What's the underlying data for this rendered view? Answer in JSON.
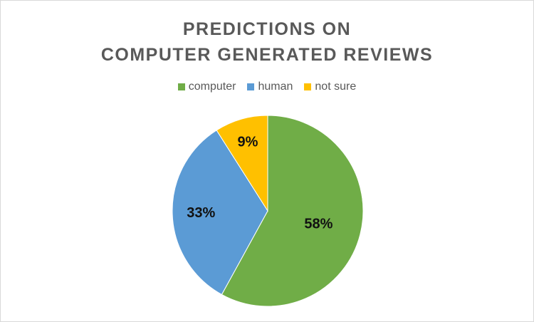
{
  "chart_data": {
    "type": "pie",
    "title_lines": [
      "PREDICTIONS ON",
      "COMPUTER GENERATED REVIEWS"
    ],
    "legend_position": "top",
    "categories": [
      "computer",
      "human",
      "not sure"
    ],
    "values": [
      58,
      33,
      9
    ],
    "labels": [
      "58%",
      "33%",
      "9%"
    ],
    "colors": [
      "#70ad47",
      "#5b9bd5",
      "#ffc000"
    ]
  }
}
